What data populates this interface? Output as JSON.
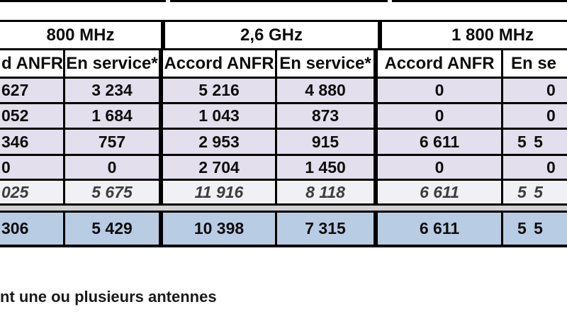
{
  "table": {
    "group_headers": [
      "800 MHz",
      "2,6 GHz",
      "1 800 MHz"
    ],
    "sub_headers": {
      "c0": "d ANFR",
      "c1": "En service*",
      "c2": "Accord ANFR",
      "c3": "En service*",
      "c4": "Accord ANFR",
      "c5": "En se"
    },
    "rows": [
      {
        "c0": "627",
        "c1": "3 234",
        "c2": "5 216",
        "c3": "4 880",
        "c4": "0",
        "c5": "0"
      },
      {
        "c0": "052",
        "c1": "1 684",
        "c2": "1 043",
        "c3": "873",
        "c4": "0",
        "c5": "0"
      },
      {
        "c0": "346",
        "c1": "757",
        "c2": "2 953",
        "c3": "915",
        "c4": "6 611",
        "c5": "5 5"
      },
      {
        "c0": "0",
        "c1": "0",
        "c2": "2 704",
        "c3": "1 450",
        "c4": "0",
        "c5": "0"
      }
    ],
    "total_row": {
      "c0": "025",
      "c1": "5 675",
      "c2": "11 916",
      "c3": "8 118",
      "c4": "6 611",
      "c5": "5 5"
    },
    "summary_row": {
      "c0": "306",
      "c1": "5 429",
      "c2": "10 398",
      "c3": "7 315",
      "c4": "6 611",
      "c5": "5 5"
    }
  },
  "footnote": "nt une ou plusieurs antennes",
  "colors": {
    "data_row_bg": "#E4DFEC",
    "total_row_bg": "#F1F0F4",
    "summary_row_bg": "#B8CCE4",
    "separator_bg": "#D1D1D1",
    "border": "#000000"
  }
}
